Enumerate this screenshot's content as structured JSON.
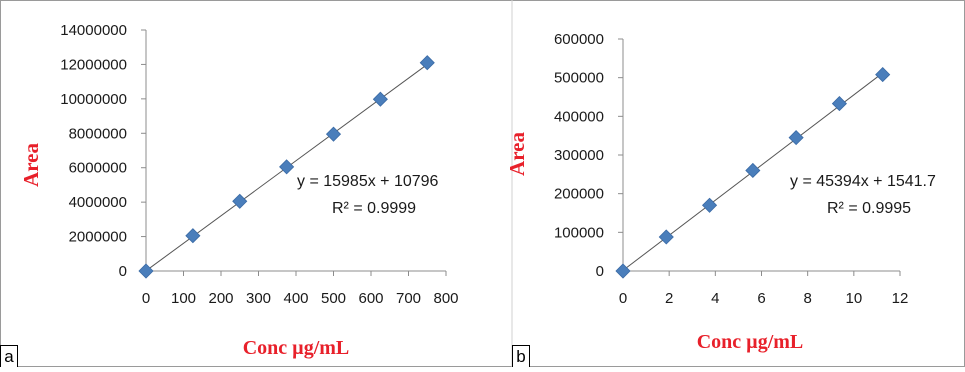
{
  "chart_data": [
    {
      "type": "scatter",
      "panel_label": "a",
      "xlabel": "Conc µg/mL",
      "ylabel": "Area",
      "xlim": [
        0,
        800
      ],
      "ylim": [
        0,
        14000000
      ],
      "xticks": [
        0,
        100,
        200,
        300,
        400,
        500,
        600,
        700,
        800
      ],
      "yticks": [
        0,
        2000000,
        4000000,
        6000000,
        8000000,
        10000000,
        12000000,
        14000000
      ],
      "xtick_labels": [
        "0",
        "100",
        "200",
        "300",
        "400",
        "500",
        "600",
        "700",
        "800"
      ],
      "ytick_labels": [
        "0",
        "2000000",
        "4000000",
        "6000000",
        "8000000",
        "10000000",
        "12000000",
        "14000000"
      ],
      "series": [
        {
          "x": [
            0,
            125,
            250,
            375,
            500,
            625,
            750
          ],
          "y": [
            0,
            2050000,
            4050000,
            6050000,
            7950000,
            9980000,
            12100000
          ],
          "marker": "diamond",
          "color": "#4a7ebb"
        }
      ],
      "trendline": {
        "slope": 15985,
        "intercept": 10796,
        "x_range": [
          0,
          750
        ],
        "color": "#555555"
      },
      "equation": "y = 15985x + 10796",
      "r_squared": "R² = 0.9999",
      "grid": false
    },
    {
      "type": "scatter",
      "panel_label": "b",
      "xlabel": "Conc µg/mL",
      "ylabel": "Area",
      "xlim": [
        0,
        12
      ],
      "ylim": [
        0,
        600000
      ],
      "xticks": [
        0,
        2,
        4,
        6,
        8,
        10,
        12
      ],
      "yticks": [
        0,
        100000,
        200000,
        300000,
        400000,
        500000,
        600000
      ],
      "xtick_labels": [
        "0",
        "2",
        "4",
        "6",
        "8",
        "10",
        "12"
      ],
      "ytick_labels": [
        "0",
        "100000",
        "200000",
        "300000",
        "400000",
        "500000",
        "600000"
      ],
      "series": [
        {
          "x": [
            0,
            1.875,
            3.75,
            5.625,
            7.5,
            9.375,
            11.25
          ],
          "y": [
            0,
            88000,
            170000,
            260000,
            345000,
            433000,
            508000
          ],
          "marker": "diamond",
          "color": "#4a7ebb"
        }
      ],
      "trendline": {
        "slope": 45394,
        "intercept": 1541.7,
        "x_range": [
          0,
          11.25
        ],
        "color": "#555555"
      },
      "equation": "y = 45394x + 1541.7",
      "r_squared": "R² = 0.9995",
      "grid": false
    }
  ]
}
